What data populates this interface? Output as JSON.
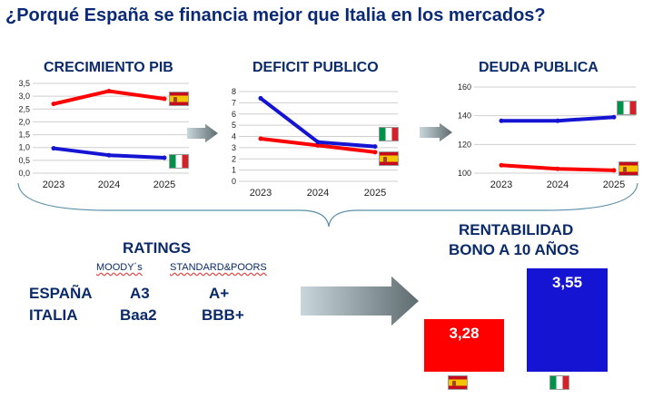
{
  "title": "¿Porqué España se financia mejor que Italia en los mercados?",
  "colors": {
    "spain": "#ff0000",
    "italy": "#1414d2",
    "heading": "#0a2a6a"
  },
  "flags": {
    "spain": "spain-flag",
    "italy": "italy-flag"
  },
  "chart_data": [
    {
      "type": "line",
      "title": "CRECIMIENTO PIB",
      "categories": [
        "2023",
        "2024",
        "2025"
      ],
      "ylim": [
        0,
        3.5
      ],
      "yticks": [
        "0,0",
        "0,5",
        "1,0",
        "1,5",
        "2,0",
        "2,5",
        "3,0",
        "3,5"
      ],
      "series": [
        {
          "name": "España",
          "values": [
            2.7,
            3.2,
            2.9
          ]
        },
        {
          "name": "Italia",
          "values": [
            0.97,
            0.7,
            0.6
          ]
        }
      ]
    },
    {
      "type": "line",
      "title": "DEFICIT PUBLICO",
      "categories": [
        "2023",
        "2024",
        "2025"
      ],
      "ylim": [
        0,
        8
      ],
      "yticks": [
        "0",
        "1",
        "2",
        "3",
        "4",
        "5",
        "6",
        "7",
        "8"
      ],
      "series": [
        {
          "name": "España",
          "values": [
            3.8,
            3.2,
            2.6
          ]
        },
        {
          "name": "Italia",
          "values": [
            7.4,
            3.5,
            3.1
          ]
        }
      ]
    },
    {
      "type": "line",
      "title": "DEUDA PUBLICA",
      "categories": [
        "2023",
        "2024",
        "2025"
      ],
      "ylim": [
        100,
        160
      ],
      "yticks": [
        "100",
        "120",
        "140",
        "160"
      ],
      "series": [
        {
          "name": "España",
          "values": [
            105.5,
            103,
            102
          ]
        },
        {
          "name": "Italia",
          "values": [
            136.5,
            136.5,
            139
          ]
        }
      ]
    },
    {
      "type": "bar",
      "title": "RENTABILIDAD BONO A 10 AÑOS",
      "categories": [
        "España",
        "Italia"
      ],
      "values": [
        3.28,
        3.55
      ],
      "value_labels": [
        "3,28",
        "3,55"
      ]
    }
  ],
  "ratings": {
    "heading": "RATINGS",
    "agencies": [
      "MOODY´s",
      "STANDARD&POORS"
    ],
    "rows": [
      {
        "country": "ESPAÑA",
        "moodys": "A3",
        "sp": "A+"
      },
      {
        "country": "ITALIA",
        "moodys": "Baa2",
        "sp": "BBB+"
      }
    ]
  },
  "yield_heading": [
    "RENTABILIDAD",
    "BONO A 10 AÑOS"
  ]
}
